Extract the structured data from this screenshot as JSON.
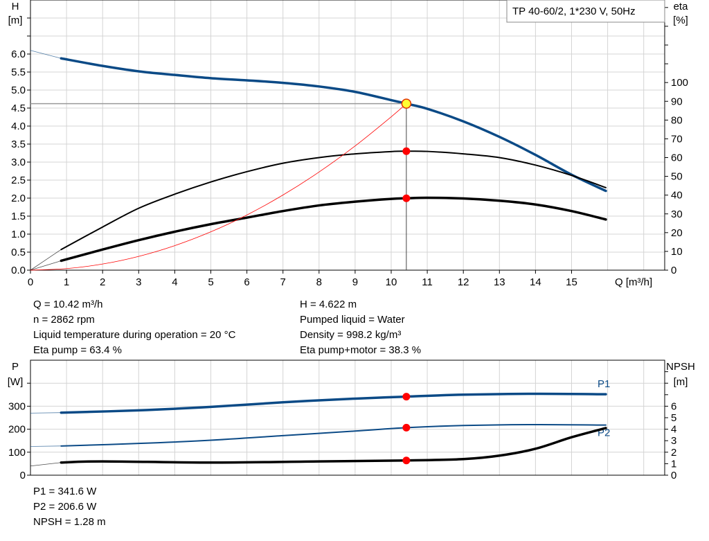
{
  "chart_data": [
    {
      "type": "line",
      "title_box": "TP 40-60/2, 1*230 V, 50Hz",
      "ylabel": "H",
      "yunit": "[m]",
      "y2label": "eta",
      "y2unit": "[%]",
      "xlabel": "Q [m³/h]",
      "xlim": [
        0,
        17.6
      ],
      "ylim": [
        0,
        7.5
      ],
      "y2lim": [
        0,
        144
      ],
      "xticks": [
        0,
        1,
        2,
        3,
        4,
        5,
        6,
        7,
        8,
        9,
        10,
        11,
        12,
        13,
        14,
        15
      ],
      "yticks": [
        "0.0",
        "0.5",
        "1.0",
        "1.5",
        "2.0",
        "2.5",
        "3.0",
        "3.5",
        "4.0",
        "4.5",
        "5.0",
        "5.5",
        "6.0"
      ],
      "y2ticks": [
        0,
        10,
        20,
        30,
        40,
        50,
        60,
        70,
        80,
        90,
        100
      ],
      "grid": true,
      "duty_point": {
        "Q": 10.42,
        "H": 4.622,
        "eta_pump": 63.4,
        "eta_total": 38.3
      },
      "series": [
        {
          "id": "H",
          "axis": "left",
          "color": "#0b4a86",
          "x": [
            0.85,
            2,
            3,
            4,
            5,
            6,
            7,
            8,
            9,
            10,
            10.42,
            11,
            12,
            13,
            14,
            15,
            15.95
          ],
          "values": [
            5.88,
            5.67,
            5.52,
            5.42,
            5.33,
            5.27,
            5.2,
            5.1,
            4.95,
            4.72,
            4.622,
            4.48,
            4.13,
            3.7,
            3.2,
            2.65,
            2.2
          ],
          "extrapolate_from": [
            0,
            6.1
          ]
        },
        {
          "id": "eta_pump",
          "axis": "right",
          "color": "#000000",
          "x": [
            0.85,
            2,
            3,
            4,
            5,
            6,
            7,
            8,
            9,
            10,
            10.42,
            11,
            12,
            13,
            14,
            15,
            15.95
          ],
          "values": [
            11,
            23,
            33,
            40.5,
            47,
            52.5,
            57,
            60,
            62,
            63.2,
            63.4,
            63.3,
            62,
            60,
            56,
            50.5,
            44
          ],
          "extrapolate_from": [
            0,
            0
          ]
        },
        {
          "id": "eta_total",
          "axis": "right",
          "color": "#000000",
          "x": [
            0.85,
            2,
            3,
            4,
            5,
            6,
            7,
            8,
            9,
            10,
            10.42,
            11,
            12,
            13,
            14,
            15,
            15.95
          ],
          "values": [
            5,
            11,
            16,
            20.5,
            24.5,
            28,
            31.5,
            34.5,
            36.5,
            38,
            38.3,
            38.6,
            38.2,
            37,
            35,
            31.5,
            27
          ],
          "extrapolate_from": [
            0,
            0
          ]
        },
        {
          "id": "system",
          "axis": "left",
          "color": "#ff0000",
          "x": [
            0,
            1,
            2,
            3,
            4,
            5,
            6,
            7,
            8,
            9,
            10,
            10.42
          ],
          "values": [
            0,
            0.043,
            0.17,
            0.383,
            0.681,
            1.064,
            1.532,
            2.086,
            2.724,
            3.448,
            4.257,
            4.622
          ]
        }
      ]
    },
    {
      "type": "line",
      "ylabel": "P",
      "yunit": "[W]",
      "y2label": "NPSH",
      "y2unit": "[m]",
      "xlim": [
        0,
        17.6
      ],
      "ylim": [
        0,
        500
      ],
      "y2lim": [
        0,
        10
      ],
      "yticks": [
        0,
        100,
        200,
        300
      ],
      "y2ticks": [
        0,
        1,
        2,
        3,
        4,
        5,
        6
      ],
      "grid": true,
      "series": [
        {
          "id": "P1",
          "name": "P1",
          "axis": "left",
          "color": "#0b4a86",
          "x": [
            0.85,
            3,
            5,
            7,
            9,
            10.42,
            12,
            14,
            15.95
          ],
          "values": [
            272,
            282,
            297,
            317,
            333,
            341.6,
            350,
            354,
            352
          ],
          "extrapolate_from": [
            0,
            270
          ]
        },
        {
          "id": "P2",
          "name": "P2",
          "axis": "left",
          "color": "#0b4a86",
          "x": [
            0.85,
            3,
            5,
            7,
            9,
            10.42,
            12,
            14,
            15.95
          ],
          "values": [
            127,
            138,
            152,
            172,
            192,
            206.6,
            216,
            220,
            218
          ],
          "extrapolate_from": [
            0,
            125
          ]
        },
        {
          "id": "NPSH",
          "axis": "right",
          "color": "#000000",
          "x": [
            0.85,
            2,
            5,
            8,
            10.42,
            12,
            13,
            14,
            15,
            15.95
          ],
          "values": [
            1.1,
            1.2,
            1.1,
            1.2,
            1.28,
            1.4,
            1.7,
            2.3,
            3.3,
            4.1
          ],
          "extrapolate_from": [
            0,
            0.8
          ]
        }
      ]
    }
  ],
  "info_top_left": [
    "Q = 10.42 m³/h",
    "n = 2862 rpm",
    "Liquid temperature during operation = 20 °C",
    "Eta pump = 63.4 %"
  ],
  "info_top_right": [
    "H = 4.622 m",
    "Pumped liquid = Water",
    "Density = 998.2 kg/m³",
    "Eta pump+motor = 38.3 %"
  ],
  "info_bottom": [
    "P1 = 341.6 W",
    "P2 = 206.6 W",
    "NPSH = 1.28 m"
  ]
}
